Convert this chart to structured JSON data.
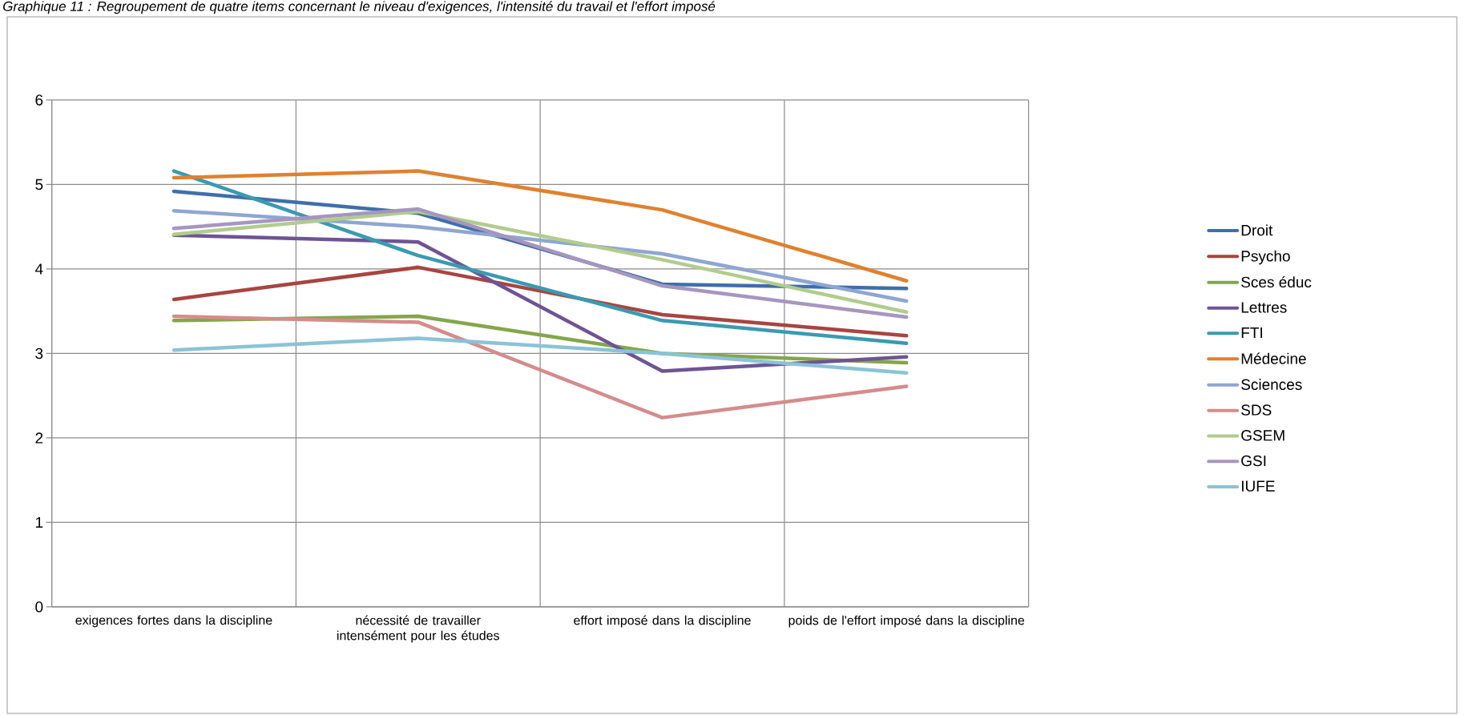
{
  "chart_data": {
    "type": "line",
    "title": "Graphique 11 : Regroupement de quatre items concernant le niveau d'exigences, l'intensité du travail et l'effort imposé",
    "categories": [
      "exigences fortes dans la discipline",
      "nécessité de travailler intensément pour les études",
      "effort imposé dans la discipline",
      "poids de l'effort imposé dans la discipline"
    ],
    "ylim": [
      0,
      6
    ],
    "yticks": [
      0,
      1,
      2,
      3,
      4,
      5,
      6
    ],
    "grid": true,
    "legend": "right",
    "marker": "none",
    "line_style": "solid",
    "series": [
      {
        "name": "Droit",
        "color": "#3f6faa",
        "values": [
          4.92,
          4.66,
          3.82,
          3.77
        ]
      },
      {
        "name": "Psycho",
        "color": "#a94441",
        "values": [
          3.64,
          4.02,
          3.46,
          3.21
        ]
      },
      {
        "name": "Sces éduc",
        "color": "#84a64b",
        "values": [
          3.39,
          3.44,
          3.0,
          2.89
        ]
      },
      {
        "name": "Lettres",
        "color": "#6e5494",
        "values": [
          4.4,
          4.32,
          2.79,
          2.96
        ]
      },
      {
        "name": "FTI",
        "color": "#3a9ab0",
        "values": [
          5.16,
          4.16,
          3.39,
          3.12
        ]
      },
      {
        "name": "Médecine",
        "color": "#e0812f",
        "values": [
          5.08,
          5.16,
          4.7,
          3.86
        ]
      },
      {
        "name": "Sciences",
        "color": "#8ea6d1",
        "values": [
          4.69,
          4.5,
          4.18,
          3.62
        ]
      },
      {
        "name": "SDS",
        "color": "#d48c8c",
        "values": [
          3.44,
          3.37,
          2.24,
          2.61
        ]
      },
      {
        "name": "GSEM",
        "color": "#b1cc8d",
        "values": [
          4.41,
          4.68,
          4.11,
          3.49
        ]
      },
      {
        "name": "GSI",
        "color": "#a696bf",
        "values": [
          4.48,
          4.71,
          3.8,
          3.43
        ]
      },
      {
        "name": "IUFE",
        "color": "#8bc3d6",
        "values": [
          3.04,
          3.18,
          3.0,
          2.77
        ]
      }
    ]
  }
}
